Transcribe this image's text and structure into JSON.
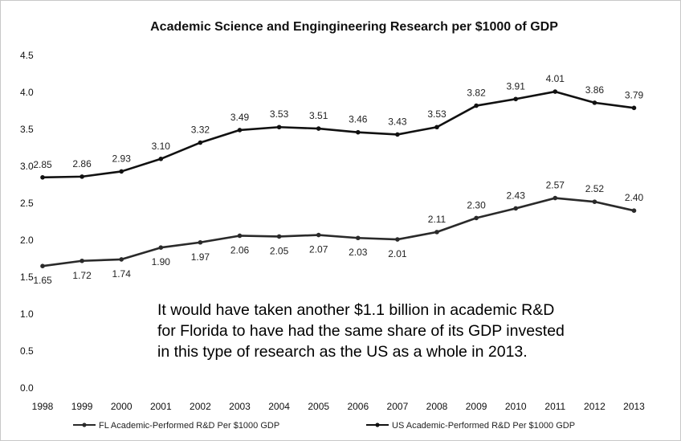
{
  "chart_data": {
    "type": "line",
    "title": "Academic Science and Engingineering Research per $1000 of GDP",
    "x": [
      1998,
      1999,
      2000,
      2001,
      2002,
      2003,
      2004,
      2005,
      2006,
      2007,
      2008,
      2009,
      2010,
      2011,
      2012,
      2013
    ],
    "y_ticks": [
      "0.0",
      "0.5",
      "1.0",
      "1.5",
      "2.0",
      "2.5",
      "3.0",
      "3.5",
      "4.0",
      "4.5"
    ],
    "ylim": [
      0,
      4.5
    ],
    "grid": false,
    "legend_position": "bottom",
    "series": [
      {
        "name": "FL Academic-Performed R&D Per $1000 GDP",
        "values": [
          1.65,
          1.72,
          1.74,
          1.9,
          1.97,
          2.06,
          2.05,
          2.07,
          2.03,
          2.01,
          2.11,
          2.3,
          2.43,
          2.57,
          2.52,
          2.4
        ],
        "labels": [
          "1.65",
          "1.72",
          "1.74",
          "1.90",
          "1.97",
          "2.06",
          "2.05",
          "2.07",
          "2.03",
          "2.01",
          "2.11",
          "2.30",
          "2.43",
          "2.57",
          "2.52",
          "2.40"
        ],
        "color": "#2a2a2a"
      },
      {
        "name": "US Academic-Performed R&D Per $1000 GDP",
        "values": [
          2.85,
          2.86,
          2.93,
          3.1,
          3.32,
          3.49,
          3.53,
          3.51,
          3.46,
          3.43,
          3.53,
          3.82,
          3.91,
          4.01,
          3.86,
          3.79
        ],
        "labels": [
          "2.85",
          "2.86",
          "2.93",
          "3.10",
          "3.32",
          "3.49",
          "3.53",
          "3.51",
          "3.46",
          "3.43",
          "3.53",
          "3.82",
          "3.91",
          "4.01",
          "3.86",
          "3.79"
        ],
        "color": "#111111"
      }
    ],
    "annotation_lines": [
      "It would have taken another $1.1 billion in academic R&D",
      "for Florida to have had the same share of its GDP invested",
      "in this type of research as the US as a whole in 2013."
    ]
  }
}
